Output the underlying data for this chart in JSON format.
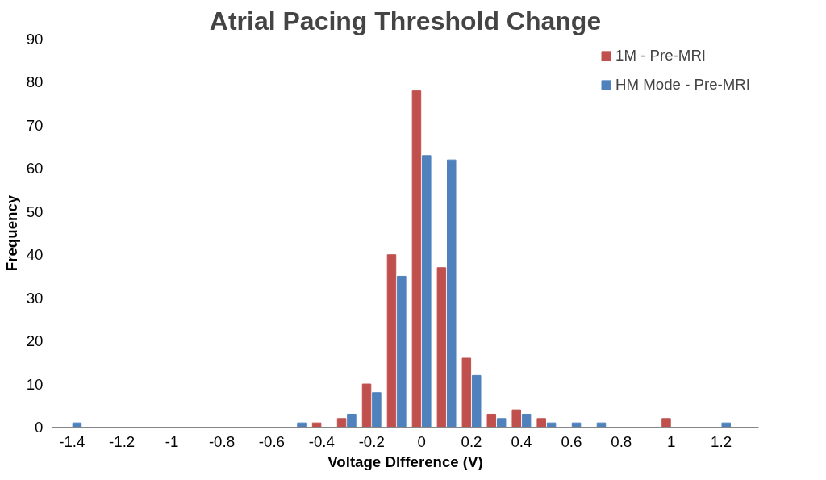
{
  "chart_data": {
    "type": "bar",
    "title": "Atrial Pacing Threshold Change",
    "xlabel": "Voltage DIfference (V)",
    "ylabel": "Frequency",
    "categories": [
      "-1.4",
      null,
      "-1.2",
      null,
      "-1",
      null,
      "-0.8",
      null,
      "-0.6",
      null,
      "-0.4",
      null,
      "-0.2",
      null,
      "0",
      null,
      "0.2",
      null,
      "0.4",
      null,
      "0.6",
      null,
      "0.8",
      null,
      "1",
      null,
      "1.2",
      null
    ],
    "series": [
      {
        "name": "1M - Pre-MRI",
        "color": "#c0504d",
        "values": [
          0,
          0,
          0,
          0,
          0,
          0,
          0,
          0,
          0,
          0,
          1,
          2,
          10,
          40,
          78,
          37,
          16,
          3,
          4,
          2,
          0,
          0,
          0,
          0,
          2,
          0,
          0,
          0
        ]
      },
      {
        "name": "HM Mode - Pre-MRI",
        "color": "#4f81bd",
        "values": [
          1,
          0,
          0,
          0,
          0,
          0,
          0,
          0,
          0,
          1,
          0,
          3,
          8,
          35,
          63,
          62,
          12,
          2,
          3,
          1,
          1,
          1,
          0,
          0,
          0,
          0,
          1,
          0
        ]
      }
    ],
    "ylim": [
      0,
      90
    ],
    "yticks": [
      0,
      10,
      20,
      30,
      40,
      50,
      60,
      70,
      80,
      90
    ],
    "grid": false,
    "legend": "top right"
  }
}
